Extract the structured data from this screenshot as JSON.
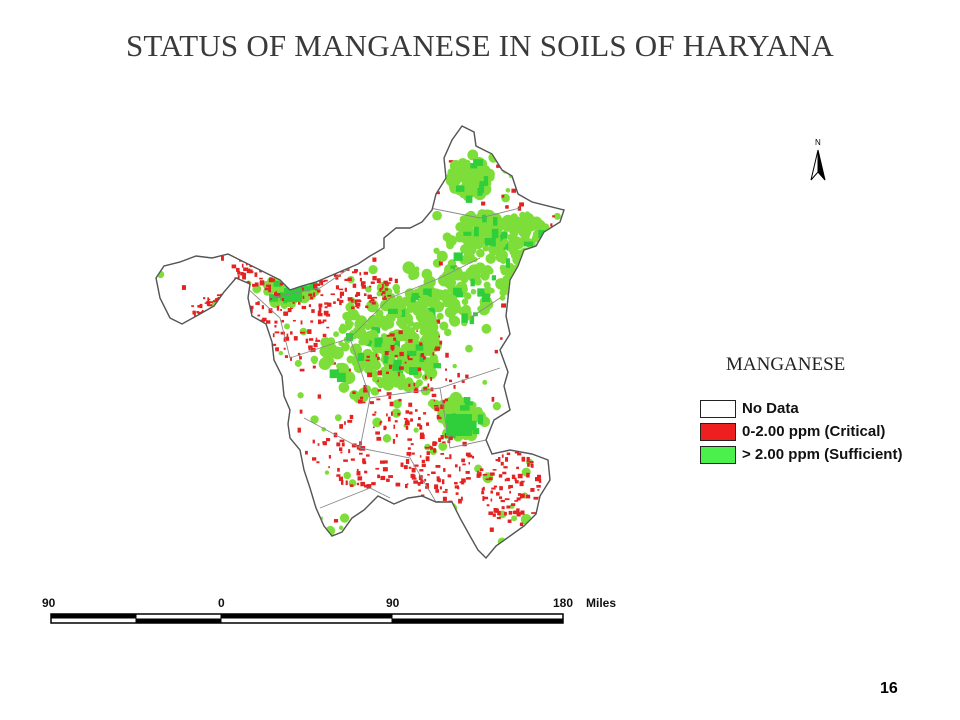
{
  "title": "STATUS OF MANGANESE IN SOILS OF HARYANA",
  "north_arrow": {
    "letter": "N"
  },
  "legend": {
    "title": "MANGANESE",
    "items": [
      {
        "label": "No Data",
        "color": "#ffffff"
      },
      {
        "label": "0-2.00 ppm (Critical)",
        "color": "#ef1f1f"
      },
      {
        "label": "> 2.00 ppm (Sufficient)",
        "color": "#4cf04c"
      }
    ]
  },
  "scale_bar": {
    "labels": [
      "90",
      "0",
      "90",
      "180"
    ],
    "unit": "Miles"
  },
  "colors": {
    "critical": "#e32222",
    "sufficient": "#7dde3a",
    "sufficient_dark": "#2ecf3a",
    "boundary": "#8a8a8a",
    "no_data": "#ffffff"
  },
  "page_number": "16"
}
